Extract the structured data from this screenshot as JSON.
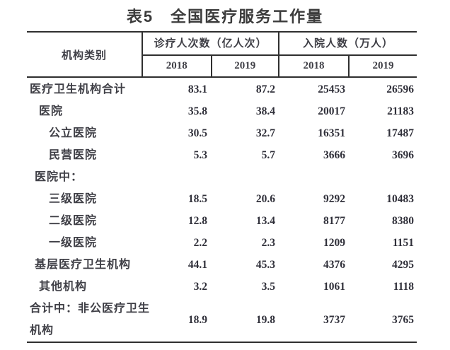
{
  "title": "表5　全国医疗服务工作量",
  "colors": {
    "rule_line": "#2f2f2f",
    "label_text": "#3f3f46",
    "number_text": "#30303a",
    "title_text": "#3b3b3b",
    "background": "#ffffff"
  },
  "header": {
    "category": "机构类别",
    "groups": [
      {
        "label": "诊疗人次数（亿人次）",
        "years": [
          "2018",
          "2019"
        ]
      },
      {
        "label": "入院人数（万人）",
        "years": [
          "2018",
          "2019"
        ]
      }
    ]
  },
  "rows": [
    {
      "label": "医疗卫生机构合计",
      "indent": 0,
      "values": [
        "83.1",
        "87.2",
        "25453",
        "26596"
      ]
    },
    {
      "label": "医院",
      "indent": 2,
      "values": [
        "35.8",
        "38.4",
        "20017",
        "21183"
      ]
    },
    {
      "label": "公立医院",
      "indent": 3,
      "values": [
        "30.5",
        "32.7",
        "16351",
        "17487"
      ]
    },
    {
      "label": "民营医院",
      "indent": 3,
      "values": [
        "5.3",
        "5.7",
        "3666",
        "3696"
      ]
    },
    {
      "label": "医院中：",
      "indent": 1,
      "values": [
        "",
        "",
        "",
        ""
      ]
    },
    {
      "label": "三级医院",
      "indent": 3,
      "values": [
        "18.5",
        "20.6",
        "9292",
        "10483"
      ]
    },
    {
      "label": "二级医院",
      "indent": 3,
      "values": [
        "12.8",
        "13.4",
        "8177",
        "8380"
      ]
    },
    {
      "label": "一级医院",
      "indent": 3,
      "values": [
        "2.2",
        "2.3",
        "1209",
        "1151"
      ]
    },
    {
      "label": "基层医疗卫生机构",
      "indent": 1,
      "values": [
        "44.1",
        "45.3",
        "4376",
        "4295"
      ]
    },
    {
      "label": "其他机构",
      "indent": 2,
      "values": [
        "3.2",
        "3.5",
        "1061",
        "1118"
      ]
    },
    {
      "label": "合计中：非公医疗卫生机构",
      "indent": 0,
      "values": [
        "18.9",
        "19.8",
        "3737",
        "3765"
      ]
    }
  ]
}
